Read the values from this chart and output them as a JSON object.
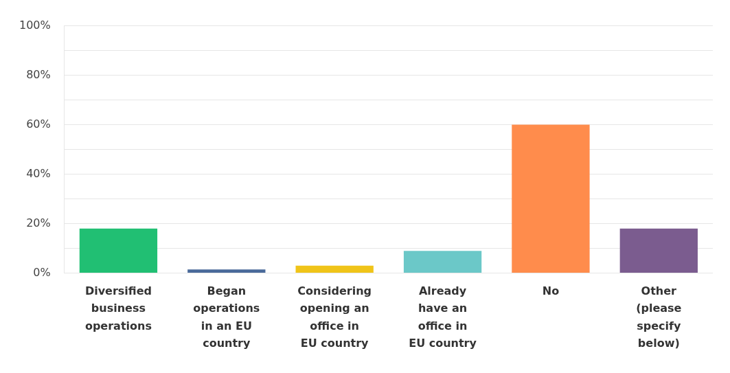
{
  "chart_data": {
    "type": "bar",
    "categories": [
      "Diversified business operations",
      "Began operations in an EU country",
      "Considering opening an office in EU country",
      "Already have an office in EU country",
      "No",
      "Other (please specify below)"
    ],
    "values": [
      18,
      1.5,
      3,
      9,
      60,
      18
    ],
    "colors": [
      "#21bf73",
      "#4a6a9a",
      "#f0c419",
      "#6bc8c8",
      "#ff8c4c",
      "#7b5c8f"
    ],
    "ylim": [
      0,
      100
    ],
    "yticks": [
      {
        "value": 0,
        "label": "0%"
      },
      {
        "value": 10,
        "label": null
      },
      {
        "value": 20,
        "label": "20%"
      },
      {
        "value": 30,
        "label": null
      },
      {
        "value": 40,
        "label": "40%"
      },
      {
        "value": 50,
        "label": null
      },
      {
        "value": 60,
        "label": "60%"
      },
      {
        "value": 70,
        "label": null
      },
      {
        "value": 80,
        "label": "80%"
      },
      {
        "value": 90,
        "label": null
      },
      {
        "value": 100,
        "label": "100%"
      }
    ],
    "grid": "y",
    "legend": false
  }
}
